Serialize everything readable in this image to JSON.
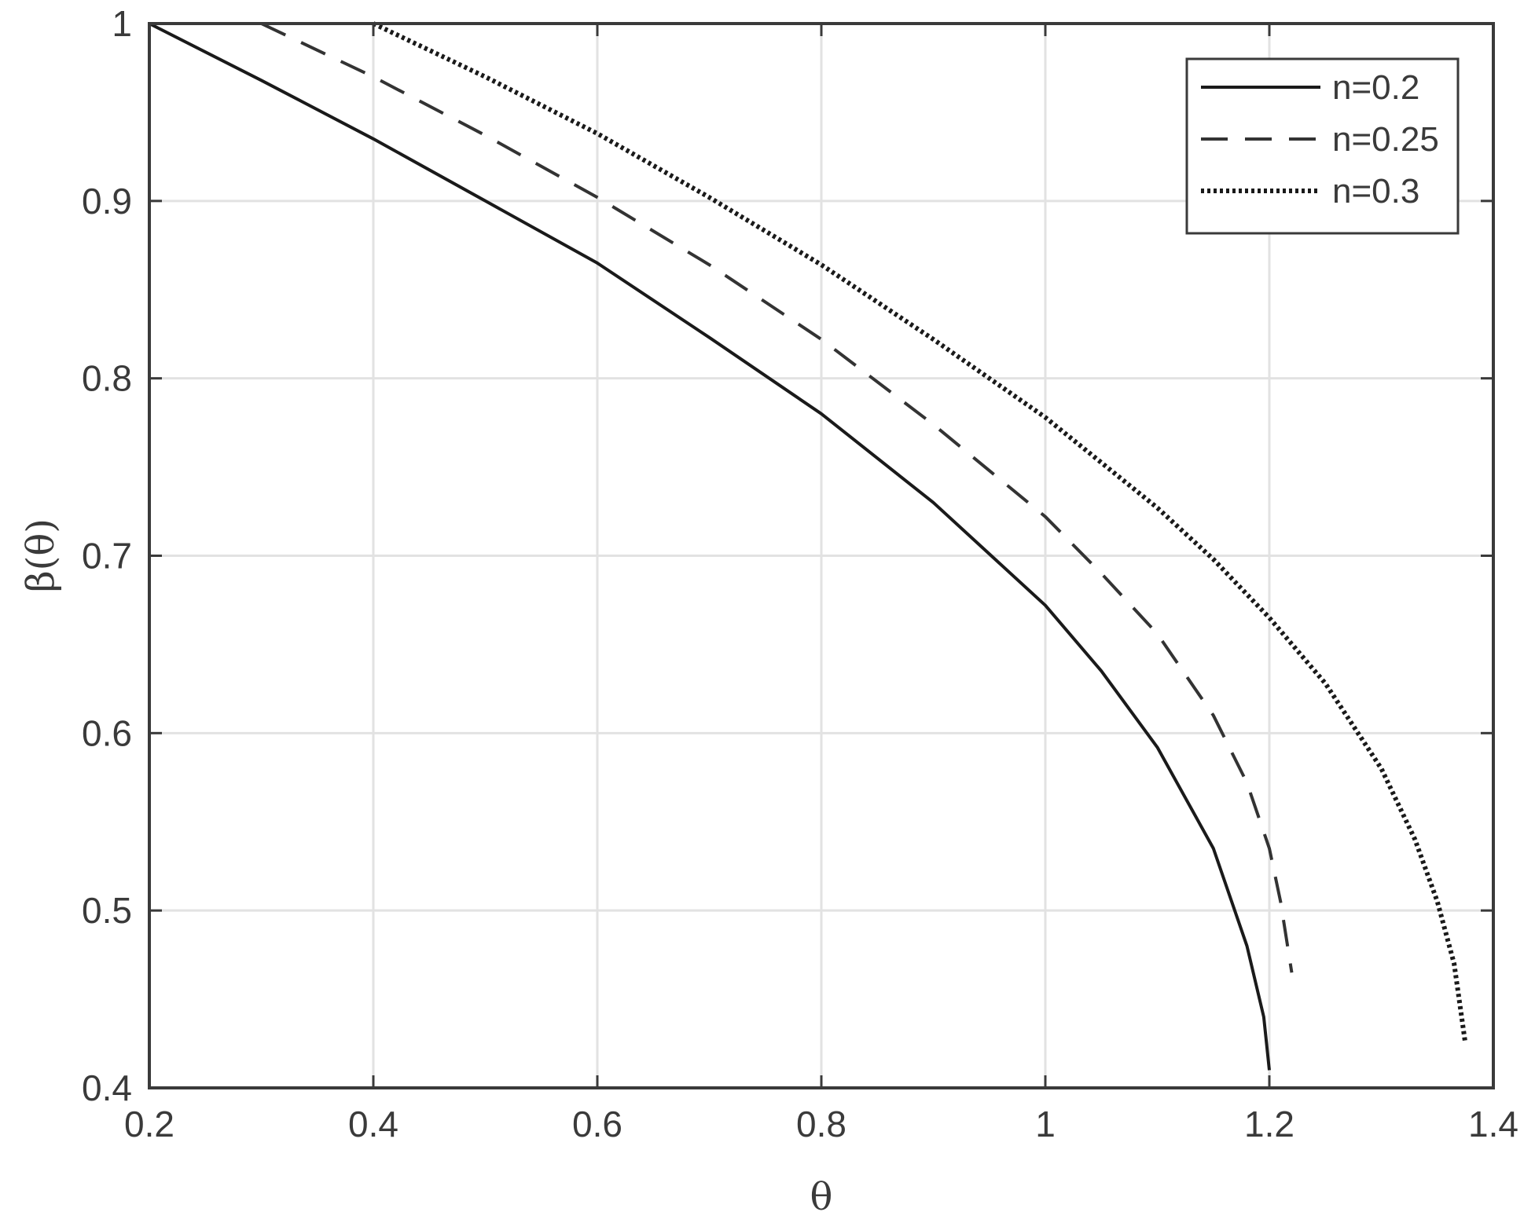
{
  "chart_data": {
    "type": "line",
    "title": "",
    "xlabel": "θ",
    "ylabel": "β(θ)",
    "xlim": [
      0.2,
      1.4
    ],
    "ylim": [
      0.4,
      1.0
    ],
    "xticks": [
      "0.2",
      "0.4",
      "0.6",
      "0.8",
      "1",
      "1.2",
      "1.4"
    ],
    "yticks": [
      "0.4",
      "0.5",
      "0.6",
      "0.7",
      "0.8",
      "0.9",
      "1"
    ],
    "grid": true,
    "legend_position": "top-right",
    "series": [
      {
        "name": "n=0.2",
        "style": "solid",
        "color": "#1a1a1a",
        "x": [
          0.2,
          0.3,
          0.4,
          0.5,
          0.6,
          0.7,
          0.8,
          0.9,
          1.0,
          1.05,
          1.1,
          1.15,
          1.18,
          1.195,
          1.2
        ],
        "y": [
          1.0,
          0.968,
          0.935,
          0.9,
          0.865,
          0.823,
          0.78,
          0.73,
          0.672,
          0.635,
          0.592,
          0.535,
          0.48,
          0.44,
          0.41
        ]
      },
      {
        "name": "n=0.25",
        "style": "dashed",
        "color": "#333333",
        "x": [
          0.3,
          0.4,
          0.5,
          0.6,
          0.7,
          0.8,
          0.9,
          1.0,
          1.05,
          1.1,
          1.15,
          1.18,
          1.2,
          1.21,
          1.22
        ],
        "y": [
          1.0,
          0.97,
          0.937,
          0.902,
          0.864,
          0.822,
          0.774,
          0.722,
          0.69,
          0.656,
          0.61,
          0.572,
          0.535,
          0.505,
          0.465
        ]
      },
      {
        "name": "n=0.3",
        "style": "dotted",
        "color": "#1a1a1a",
        "x": [
          0.4,
          0.5,
          0.6,
          0.7,
          0.8,
          0.9,
          1.0,
          1.1,
          1.15,
          1.2,
          1.25,
          1.3,
          1.33,
          1.35,
          1.365,
          1.375
        ],
        "y": [
          1.0,
          0.97,
          0.938,
          0.902,
          0.864,
          0.822,
          0.778,
          0.727,
          0.698,
          0.665,
          0.628,
          0.58,
          0.54,
          0.505,
          0.47,
          0.425
        ]
      }
    ]
  }
}
